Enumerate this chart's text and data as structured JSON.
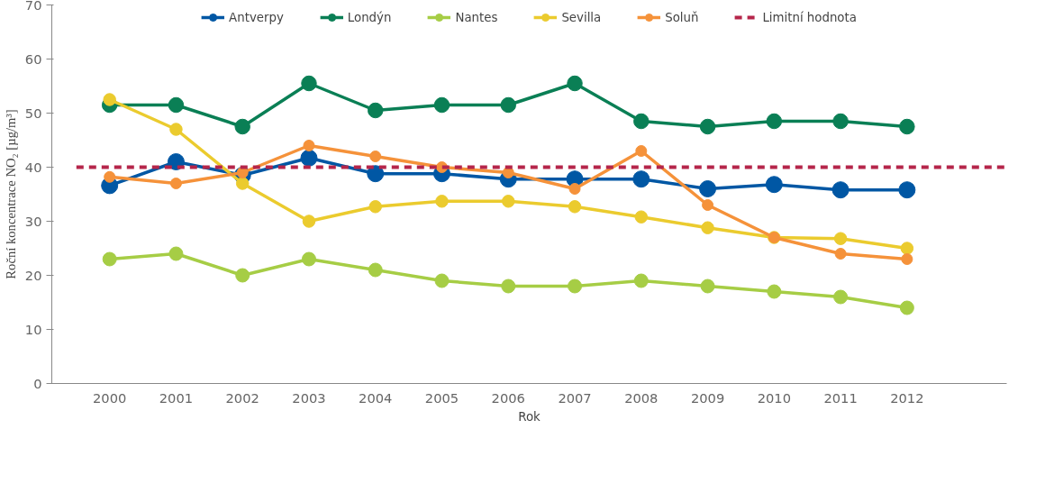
{
  "chart_data": {
    "type": "line",
    "xlabel": "Rok",
    "ylabel": "Roční koncentrace NO₂ [µg/m³]",
    "categories": [
      "2000",
      "2001",
      "2002",
      "2003",
      "2004",
      "2005",
      "2006",
      "2007",
      "2008",
      "2009",
      "2010",
      "2011",
      "2012"
    ],
    "series": [
      {
        "name": "Antverpy",
        "color": "#0057a4",
        "values": [
          36.6,
          41,
          38.5,
          41.7,
          38.8,
          38.8,
          37.8,
          37.8,
          37.8,
          36,
          36.8,
          35.8,
          35.8
        ]
      },
      {
        "name": "Londýn",
        "color": "#0a7f55",
        "values": [
          51.5,
          51.5,
          47.5,
          55.5,
          50.5,
          51.5,
          51.5,
          55.5,
          48.5,
          47.5,
          48.5,
          48.5,
          47.5
        ]
      },
      {
        "name": "Nantes",
        "color": "#a6cd45",
        "values": [
          23,
          24,
          20,
          23,
          21,
          19,
          18,
          18,
          19,
          18,
          17,
          16,
          14
        ]
      },
      {
        "name": "Sevilla",
        "color": "#ebcb2e",
        "values": [
          52.5,
          47,
          37,
          30,
          32.7,
          33.7,
          33.7,
          32.7,
          30.8,
          28.8,
          27,
          26.8,
          25
        ]
      },
      {
        "name": "Soluň",
        "color": "#f5923a",
        "values": [
          38.2,
          37,
          39,
          44,
          42,
          40,
          39,
          36,
          43,
          33,
          27,
          24,
          23
        ]
      }
    ],
    "ref_lines": [
      {
        "axis": "y",
        "value": 40,
        "label": "Limitní hodnota",
        "color": "#b5254a",
        "line_style": "dashed"
      }
    ],
    "ylim": [
      0,
      70
    ],
    "yticks": [
      0,
      10,
      20,
      30,
      40,
      50,
      60,
      70
    ],
    "grid": false,
    "legend": "top",
    "marker": "circle",
    "line_style": "solid"
  }
}
